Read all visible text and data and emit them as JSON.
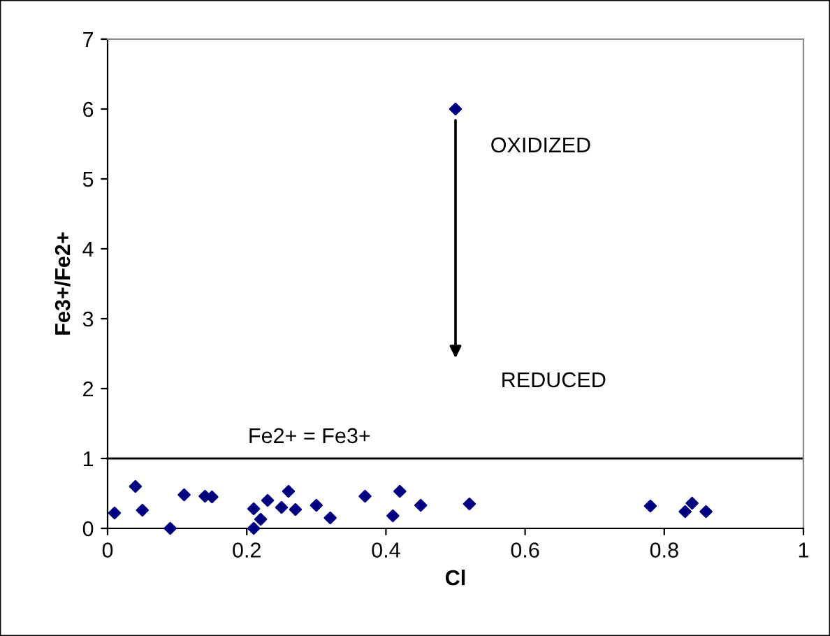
{
  "chart_data": {
    "type": "scatter",
    "xlabel": "Cl",
    "ylabel": "Fe3+/Fe2+",
    "x": [
      0.01,
      0.04,
      0.05,
      0.09,
      0.11,
      0.14,
      0.15,
      0.21,
      0.21,
      0.22,
      0.23,
      0.25,
      0.26,
      0.27,
      0.3,
      0.32,
      0.37,
      0.41,
      0.42,
      0.45,
      0.52,
      0.78,
      0.83,
      0.84,
      0.86,
      0.5
    ],
    "values": [
      0.22,
      0.6,
      0.26,
      0.0,
      0.48,
      0.46,
      0.45,
      0.28,
      0.0,
      0.13,
      0.4,
      0.3,
      0.53,
      0.27,
      0.33,
      0.15,
      0.46,
      0.18,
      0.53,
      0.33,
      0.35,
      0.32,
      0.24,
      0.36,
      0.24,
      6.0
    ],
    "color": "#000080",
    "marker": "diamond",
    "xlim": [
      0,
      1
    ],
    "xticks": [
      0,
      0.2,
      0.4,
      0.6,
      0.8,
      1
    ],
    "ylim": [
      0,
      7
    ],
    "yticks": [
      0,
      1,
      2,
      3,
      4,
      5,
      6,
      7
    ],
    "grid": false,
    "ref_lines": [
      {
        "axis": "y",
        "value": 1,
        "label": "Fe2+ = Fe3+",
        "color": "#000000"
      }
    ],
    "annotations": [
      "OXIDIZED",
      "REDUCED"
    ]
  }
}
